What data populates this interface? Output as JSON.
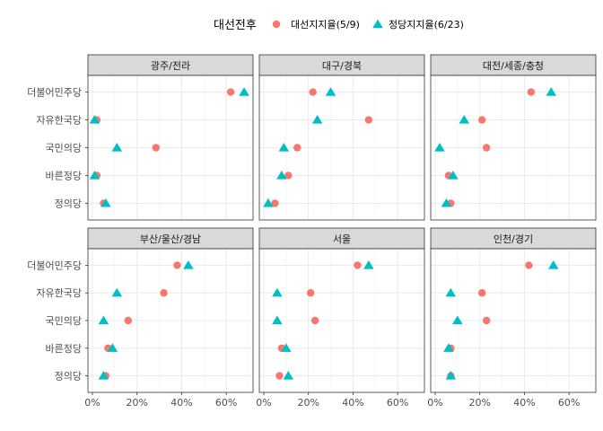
{
  "chart_data": {
    "type": "scatter",
    "legend": {
      "title": "대선전후",
      "position": "top",
      "entries": [
        {
          "name": "대선지지율(5/9)",
          "shape": "circle",
          "color": "#F8766D"
        },
        {
          "name": "정당지지율(6/23)",
          "shape": "triangle",
          "color": "#00BFC4"
        }
      ]
    },
    "categories": [
      "정의당",
      "바른정당",
      "국민의당",
      "자유한국당",
      "더불어민주당"
    ],
    "x_ticks": [
      "0%",
      "20%",
      "40%",
      "60%"
    ],
    "xlim": [
      -2,
      72
    ],
    "grid": true,
    "panels": [
      {
        "title": "광주/전라",
        "series": [
          {
            "name": "대선지지율(5/9)",
            "values": [
              5,
              2,
              28.5,
              2,
              62
            ]
          },
          {
            "name": "정당지지율(6/23)",
            "values": [
              6,
              1,
              11,
              1,
              68
            ]
          }
        ]
      },
      {
        "title": "대구/경북",
        "series": [
          {
            "name": "대선지지율(5/9)",
            "values": [
              5,
              11,
              15,
              47,
              22
            ]
          },
          {
            "name": "정당지지율(6/23)",
            "values": [
              2,
              8,
              9,
              24,
              30
            ]
          }
        ]
      },
      {
        "title": "대전/세종/충청",
        "series": [
          {
            "name": "대선지지율(5/9)",
            "values": [
              7,
              6,
              23,
              21,
              43
            ]
          },
          {
            "name": "정당지지율(6/23)",
            "values": [
              5,
              8,
              2,
              13,
              52
            ]
          }
        ]
      },
      {
        "title": "부산/울산/경남",
        "series": [
          {
            "name": "대선지지율(5/9)",
            "values": [
              6,
              7,
              16,
              32,
              38
            ]
          },
          {
            "name": "정당지지율(6/23)",
            "values": [
              5,
              9,
              5,
              11,
              43
            ]
          }
        ]
      },
      {
        "title": "서울",
        "series": [
          {
            "name": "대선지지율(5/9)",
            "values": [
              7,
              8,
              23,
              21,
              42
            ]
          },
          {
            "name": "정당지지율(6/23)",
            "values": [
              11,
              10,
              6,
              6,
              47
            ]
          }
        ]
      },
      {
        "title": "인천/경기",
        "series": [
          {
            "name": "대선지지율(5/9)",
            "values": [
              7,
              7,
              23,
              21,
              42
            ]
          },
          {
            "name": "정당지지율(6/23)",
            "values": [
              7,
              6,
              10,
              7,
              53
            ]
          }
        ]
      }
    ]
  }
}
